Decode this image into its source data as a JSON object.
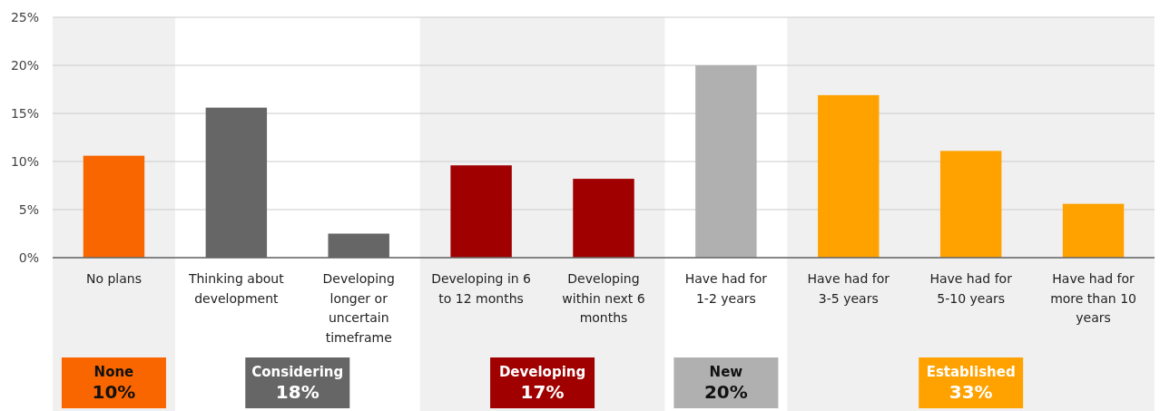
{
  "chart_data": {
    "type": "bar",
    "categories": [
      "No plans",
      "Thinking about development",
      "Developing longer or uncertain timeframe",
      "Developing in 6 to 12 months",
      "Developing within next 6 months",
      "Have had for 1-2 years",
      "Have had for 3-5 years",
      "Have had for 5-10 years",
      "Have had for more than 10 years"
    ],
    "values": [
      10.6,
      15.6,
      2.5,
      9.6,
      8.2,
      20.0,
      16.9,
      11.1,
      5.6
    ],
    "colors": [
      "#f96600",
      "#666666",
      "#666666",
      "#a00000",
      "#a00000",
      "#b0b0b0",
      "#ffa200",
      "#ffa200",
      "#ffa200"
    ],
    "ylim": [
      0,
      25
    ],
    "yticks": [
      {
        "value": 0,
        "label": "0%"
      },
      {
        "value": 5,
        "label": "5%"
      },
      {
        "value": 10,
        "label": "10%"
      },
      {
        "value": 15,
        "label": "15%"
      },
      {
        "value": 20,
        "label": "20%"
      },
      {
        "value": 25,
        "label": "25%"
      }
    ],
    "grid": "y",
    "bands": [
      {
        "axis": "x",
        "from": "No plans",
        "to": "No plans",
        "color": "#f0f0f0"
      },
      {
        "axis": "x",
        "from": "Developing in 6 to 12 months",
        "to": "Developing within next 6 months",
        "color": "#f0f0f0"
      },
      {
        "axis": "x",
        "from": "Have had for 3-5 years",
        "to": "Have had for more than 10 years",
        "color": "#f0f0f0"
      }
    ],
    "annotations": [
      "None 10%",
      "Considering 18%",
      "Developing 17%",
      "New 20%",
      "Established 33%"
    ]
  }
}
